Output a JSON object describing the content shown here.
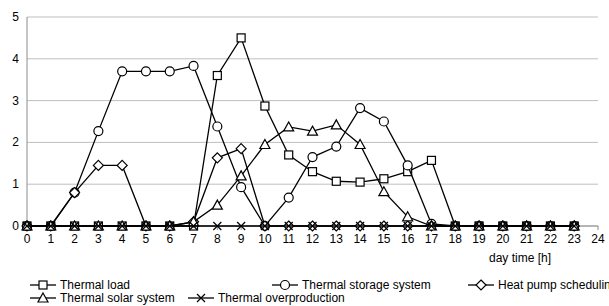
{
  "chart_data": {
    "type": "line",
    "x_label": "day time [h]",
    "x": [
      0,
      1,
      2,
      3,
      4,
      5,
      6,
      7,
      8,
      9,
      10,
      11,
      12,
      13,
      14,
      15,
      16,
      17,
      18,
      19,
      20,
      21,
      22,
      23
    ],
    "xlim": [
      0,
      24
    ],
    "xticks": [
      0,
      1,
      2,
      3,
      4,
      5,
      6,
      7,
      8,
      9,
      10,
      11,
      12,
      13,
      14,
      15,
      16,
      17,
      18,
      19,
      20,
      21,
      22,
      23,
      24
    ],
    "ylim": [
      0,
      5
    ],
    "yticks": [
      0,
      1,
      2,
      3,
      4,
      5
    ],
    "grid": true,
    "legend": "bottom",
    "series": [
      {
        "name": "Thermal load",
        "color": "#000000",
        "marker": "square",
        "values": [
          0,
          0,
          0,
          0,
          0,
          0,
          0,
          0,
          3.6,
          4.5,
          2.87,
          1.7,
          1.3,
          1.07,
          1.05,
          1.13,
          1.3,
          1.57,
          0,
          0,
          0,
          0,
          0,
          0
        ]
      },
      {
        "name": "Thermal storage system",
        "color": "#000000",
        "marker": "circle",
        "values": [
          0,
          0,
          0.8,
          2.27,
          3.7,
          3.7,
          3.7,
          3.83,
          2.38,
          0.93,
          0,
          0.68,
          1.65,
          1.9,
          2.82,
          2.5,
          1.45,
          0.05,
          0,
          0,
          0,
          0,
          0,
          0
        ]
      },
      {
        "name": "Heat pump scheduling",
        "color": "#000000",
        "marker": "diamond",
        "values": [
          0,
          0,
          0.8,
          1.45,
          1.45,
          0,
          0,
          0.1,
          1.63,
          1.85,
          0,
          0,
          0,
          0,
          0,
          0,
          0,
          0,
          0,
          0,
          0,
          0,
          0,
          0
        ]
      },
      {
        "name": "Thermal solar system",
        "color": "#000000",
        "marker": "triangle",
        "values": [
          0,
          0,
          0,
          0,
          0,
          0,
          0,
          0.1,
          0.5,
          1.2,
          1.95,
          2.37,
          2.27,
          2.42,
          1.95,
          0.82,
          0.22,
          0,
          0,
          0,
          0,
          0,
          0,
          0
        ]
      },
      {
        "name": "Thermal overproduction",
        "color": "#000000",
        "marker": "x",
        "values": [
          0,
          0,
          0,
          0,
          0,
          0,
          0,
          0,
          0,
          0,
          0,
          0,
          0,
          0,
          0,
          0,
          0,
          0,
          0,
          0,
          0,
          0,
          0,
          0
        ]
      }
    ]
  }
}
